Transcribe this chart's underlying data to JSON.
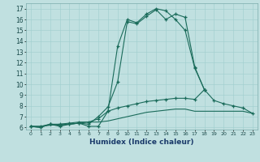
{
  "title": "",
  "xlabel": "Humidex (Indice chaleur)",
  "ylabel": "",
  "bg_color": "#c0e0e0",
  "line_color": "#1a6b5a",
  "xlim": [
    -0.5,
    23.5
  ],
  "ylim": [
    5.8,
    17.5
  ],
  "yticks": [
    6,
    7,
    8,
    9,
    10,
    11,
    12,
    13,
    14,
    15,
    16,
    17
  ],
  "xticks": [
    0,
    1,
    2,
    3,
    4,
    5,
    6,
    7,
    8,
    9,
    10,
    11,
    12,
    13,
    14,
    15,
    16,
    17,
    18,
    19,
    20,
    21,
    22,
    23
  ],
  "series": [
    {
      "x": [
        0,
        1,
        2,
        3,
        4,
        5,
        6,
        7,
        8,
        9,
        10,
        11,
        12,
        13,
        14,
        15,
        16,
        17,
        18
      ],
      "y": [
        6.1,
        6.0,
        6.3,
        6.1,
        6.3,
        6.4,
        6.1,
        6.1,
        7.5,
        13.5,
        16.0,
        15.7,
        16.5,
        17.0,
        16.8,
        16.0,
        15.0,
        11.5,
        9.5
      ],
      "marker": "+"
    },
    {
      "x": [
        0,
        1,
        2,
        3,
        4,
        5,
        6,
        7,
        8,
        9,
        10,
        11,
        12,
        13,
        14,
        15,
        16,
        17,
        18
      ],
      "y": [
        6.1,
        6.0,
        6.3,
        6.2,
        6.3,
        6.4,
        6.3,
        7.0,
        7.9,
        10.2,
        15.8,
        15.6,
        16.3,
        16.9,
        16.0,
        16.5,
        16.2,
        11.6,
        9.5
      ],
      "marker": "+"
    },
    {
      "x": [
        0,
        1,
        2,
        3,
        4,
        5,
        6,
        7,
        8,
        9,
        10,
        11,
        12,
        13,
        14,
        15,
        16,
        17,
        18,
        19,
        20,
        21,
        22,
        23
      ],
      "y": [
        6.1,
        6.1,
        6.3,
        6.3,
        6.4,
        6.5,
        6.5,
        6.8,
        7.5,
        7.8,
        8.0,
        8.2,
        8.4,
        8.5,
        8.6,
        8.7,
        8.7,
        8.6,
        9.5,
        8.5,
        8.2,
        8.0,
        7.8,
        7.3
      ],
      "marker": "+"
    },
    {
      "x": [
        0,
        1,
        2,
        3,
        4,
        5,
        6,
        7,
        8,
        9,
        10,
        11,
        12,
        13,
        14,
        15,
        16,
        17,
        18,
        19,
        20,
        21,
        22,
        23
      ],
      "y": [
        6.1,
        6.1,
        6.2,
        6.3,
        6.3,
        6.4,
        6.5,
        6.5,
        6.6,
        6.8,
        7.0,
        7.2,
        7.4,
        7.5,
        7.6,
        7.7,
        7.7,
        7.5,
        7.5,
        7.5,
        7.5,
        7.5,
        7.5,
        7.3
      ],
      "marker": null
    }
  ]
}
